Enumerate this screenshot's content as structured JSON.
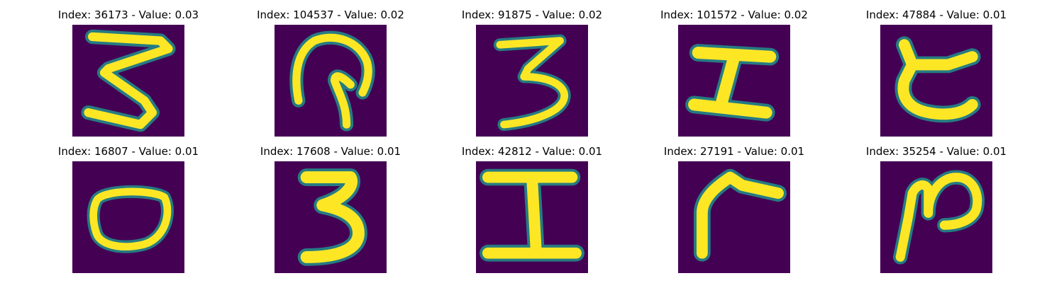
{
  "grid": {
    "palette": {
      "background": "#440154",
      "mid": "#21918c",
      "stroke": "#fde725"
    },
    "panels": [
      {
        "index": "36173",
        "value": "0.03",
        "title": "Index: 36173 - Value: 0.03",
        "glyph": "Z-shape"
      },
      {
        "index": "104537",
        "value": "0.02",
        "title": "Index: 104537 - Value: 0.02",
        "glyph": "loop-hook"
      },
      {
        "index": "91875",
        "value": "0.02",
        "title": "Index: 91875 - Value: 0.02",
        "glyph": "three"
      },
      {
        "index": "101572",
        "value": "0.02",
        "title": "Index: 101572 - Value: 0.02",
        "glyph": "serif-bar"
      },
      {
        "index": "47884",
        "value": "0.01",
        "title": "Index: 47884 - Value: 0.01",
        "glyph": "c-curve"
      },
      {
        "index": "16807",
        "value": "0.01",
        "title": "Index: 16807 - Value: 0.01",
        "glyph": "zero"
      },
      {
        "index": "17608",
        "value": "0.01",
        "title": "Index: 17608 - Value: 0.01",
        "glyph": "three-bold"
      },
      {
        "index": "42812",
        "value": "0.01",
        "title": "Index: 42812 - Value: 0.01",
        "glyph": "capital-i"
      },
      {
        "index": "27191",
        "value": "0.01",
        "title": "Index: 27191 - Value: 0.01",
        "glyph": "r-shape"
      },
      {
        "index": "35254",
        "value": "0.01",
        "title": "Index: 35254 - Value: 0.01",
        "glyph": "n-loop"
      }
    ]
  }
}
